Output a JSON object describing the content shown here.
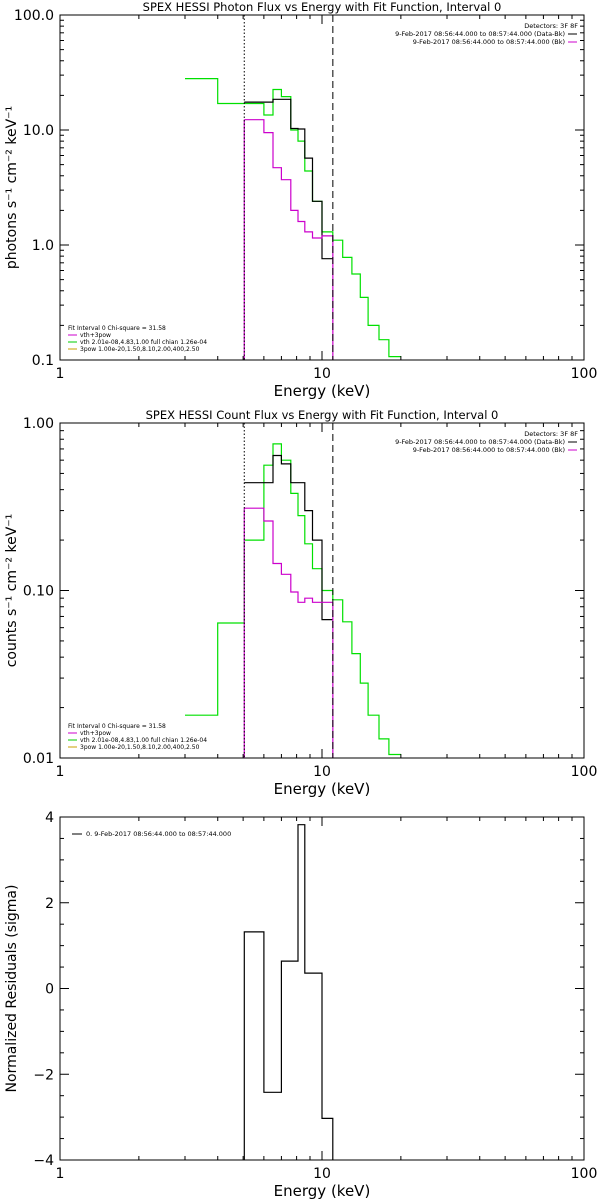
{
  "chart_data": [
    {
      "type": "line",
      "title": "SPEX HESSI Photon Flux vs Energy with Fit Function, Interval 0",
      "xlabel": "Energy (keV)",
      "ylabel": "photons s⁻¹ cm⁻² keV⁻¹",
      "xscale": "log",
      "yscale": "log",
      "xlim": [
        1,
        100
      ],
      "ylim": [
        0.1,
        100
      ],
      "xticks": [
        {
          "v": 1,
          "label": "1"
        },
        {
          "v": 10,
          "label": "10"
        },
        {
          "v": 100,
          "label": "100"
        }
      ],
      "yticks": [
        {
          "v": 0.1,
          "label": "0.1"
        },
        {
          "v": 1,
          "label": "1.0"
        },
        {
          "v": 10,
          "label": "10.0"
        },
        {
          "v": 100,
          "label": "100.0"
        }
      ],
      "vlines": [
        {
          "x": 5.05,
          "style": "dotted"
        },
        {
          "x": 11.0,
          "style": "dashed"
        }
      ],
      "legend_tr": [
        {
          "text": "Detectors: 3F 8F",
          "color": "#000000",
          "line": false
        },
        {
          "text": "9-Feb-2017 08:56:44.000 to 08:57:44.000 (Data-Bk)",
          "color": "#000000",
          "line": true
        },
        {
          "text": "9-Feb-2017 08:56:44.000 to 08:57:44.000 (Bk)",
          "color": "#cc00cc",
          "line": true
        }
      ],
      "legend_bl": [
        {
          "text": "Fit Interval 0   Chi-square = 31.58",
          "color": "#000000",
          "line": false
        },
        {
          "text": "vth+3pow",
          "color": "#cc00cc",
          "line": true
        },
        {
          "text": "vth 2.01e-08,4.83,1.00  full chian 1.26e-04",
          "color": "#00cc00",
          "line": true
        },
        {
          "text": "3pow 1.00e-20,1.50,8.10,2.00,400,2.50",
          "color": "#c8a000",
          "line": true
        }
      ],
      "series": [
        {
          "color": "#00e000",
          "edges": [
            3,
            4,
            5.05,
            6,
            6.5,
            7,
            7.6,
            8.1,
            8.6,
            9.2,
            10,
            11,
            12,
            13,
            14,
            15,
            16.5,
            18,
            20
          ],
          "values": [
            28,
            17,
            17,
            13.5,
            22.5,
            19.5,
            10,
            8,
            4.4,
            2.4,
            1.3,
            1.1,
            0.78,
            0.56,
            0.35,
            0.2,
            0.15,
            0.107
          ]
        },
        {
          "color": "#000000",
          "edges": [
            5.05,
            6,
            6.5,
            7,
            7.6,
            8.1,
            8.6,
            9.2,
            10,
            11
          ],
          "values": [
            17.5,
            17.5,
            18.5,
            18.5,
            10.3,
            10.2,
            5.7,
            2.4,
            0.76
          ]
        },
        {
          "color": "#cc00cc",
          "edges": [
            5.05,
            6,
            6.5,
            7,
            7.6,
            8.1,
            8.6,
            9.2,
            10,
            11
          ],
          "values": [
            12.3,
            9.5,
            4.7,
            3.7,
            2.0,
            1.6,
            1.3,
            1.15,
            1.2
          ]
        }
      ],
      "vsegments": [
        {
          "x": 5.05,
          "y0": 0.1,
          "y1": 12.3,
          "color": "#cc00cc"
        },
        {
          "x": 11.0,
          "y0": 0.1,
          "y1": 1.2,
          "color": "#cc00cc"
        }
      ]
    },
    {
      "type": "line",
      "title": "SPEX HESSI Count Flux vs Energy with Fit Function, Interval 0",
      "xlabel": "Energy (keV)",
      "ylabel": "counts s⁻¹ cm⁻² keV⁻¹",
      "xscale": "log",
      "yscale": "log",
      "xlim": [
        1,
        100
      ],
      "ylim": [
        0.01,
        1
      ],
      "xticks": [
        {
          "v": 1,
          "label": "1"
        },
        {
          "v": 10,
          "label": "10"
        },
        {
          "v": 100,
          "label": "100"
        }
      ],
      "yticks": [
        {
          "v": 0.01,
          "label": "0.01"
        },
        {
          "v": 0.1,
          "label": "0.10"
        },
        {
          "v": 1,
          "label": "1.00"
        }
      ],
      "vlines": [
        {
          "x": 5.05,
          "style": "dotted"
        },
        {
          "x": 11.0,
          "style": "dashed"
        }
      ],
      "legend_tr": [
        {
          "text": "Detectors: 3F 8F",
          "color": "#000000",
          "line": false
        },
        {
          "text": "9-Feb-2017 08:56:44.000 to 08:57:44.000 (Data-Bk)",
          "color": "#000000",
          "line": true
        },
        {
          "text": "9-Feb-2017 08:56:44.000 to 08:57:44.000 (Bk)",
          "color": "#cc00cc",
          "line": true
        }
      ],
      "legend_bl": [
        {
          "text": "Fit Interval 0   Chi-square = 31.58",
          "color": "#000000",
          "line": false
        },
        {
          "text": "vth+3pow",
          "color": "#cc00cc",
          "line": true
        },
        {
          "text": "vth 2.01e-08,4.83,1.00  full chian 1.26e-04",
          "color": "#00cc00",
          "line": true
        },
        {
          "text": "3pow 1.00e-20,1.50,8.10,2.00,400,2.50",
          "color": "#c8a000",
          "line": true
        }
      ],
      "series": [
        {
          "color": "#00e000",
          "edges": [
            3,
            4,
            5.05,
            6,
            6.5,
            7,
            7.6,
            8.1,
            8.6,
            9.2,
            10,
            11,
            12,
            13,
            14,
            15,
            16.5,
            18,
            20
          ],
          "values": [
            0.018,
            0.064,
            0.2,
            0.56,
            0.75,
            0.6,
            0.38,
            0.28,
            0.19,
            0.135,
            0.1,
            0.088,
            0.065,
            0.042,
            0.028,
            0.018,
            0.013,
            0.0105
          ]
        },
        {
          "color": "#000000",
          "edges": [
            5.05,
            6,
            6.5,
            7,
            7.6,
            8.1,
            8.6,
            9.2,
            10,
            11
          ],
          "values": [
            0.44,
            0.44,
            0.64,
            0.57,
            0.44,
            0.44,
            0.3,
            0.2,
            0.067
          ]
        },
        {
          "color": "#cc00cc",
          "edges": [
            5.05,
            6,
            6.5,
            7,
            7.6,
            8.1,
            8.6,
            9.2,
            10,
            11
          ],
          "values": [
            0.31,
            0.26,
            0.145,
            0.125,
            0.098,
            0.085,
            0.09,
            0.085,
            0.085
          ]
        }
      ],
      "vsegments": [
        {
          "x": 5.05,
          "y0": 0.01,
          "y1": 0.31,
          "color": "#cc00cc"
        },
        {
          "x": 11.0,
          "y0": 0.01,
          "y1": 0.085,
          "color": "#cc00cc"
        }
      ]
    },
    {
      "type": "line",
      "title": "",
      "xlabel": "Energy (keV)",
      "ylabel": "Normalized Residuals (sigma)",
      "xscale": "log",
      "yscale": "linear",
      "xlim": [
        1,
        100
      ],
      "ylim": [
        -4,
        4
      ],
      "xticks": [
        {
          "v": 1,
          "label": "1"
        },
        {
          "v": 10,
          "label": "10"
        },
        {
          "v": 100,
          "label": "100"
        }
      ],
      "yticks": [
        {
          "v": -4,
          "label": "−4"
        },
        {
          "v": -2,
          "label": "−2"
        },
        {
          "v": 0,
          "label": "0"
        },
        {
          "v": 2,
          "label": "2"
        },
        {
          "v": 4,
          "label": "4"
        }
      ],
      "vlines": [],
      "legend_tr": [],
      "legend_bl": [],
      "legend_tl": [
        {
          "text": "0.  9-Feb-2017 08:56:44.000 to 08:57:44.000",
          "color": "#000000",
          "line": true
        }
      ],
      "series": [
        {
          "color": "#000000",
          "edges": [
            5.05,
            6,
            7,
            7.6,
            8.1,
            8.6,
            9.2,
            10,
            11
          ],
          "values": [
            1.32,
            -2.42,
            0.64,
            0.64,
            3.82,
            0.36,
            0.36,
            -3.03
          ]
        }
      ],
      "baseline": -4,
      "vsegments": []
    }
  ]
}
